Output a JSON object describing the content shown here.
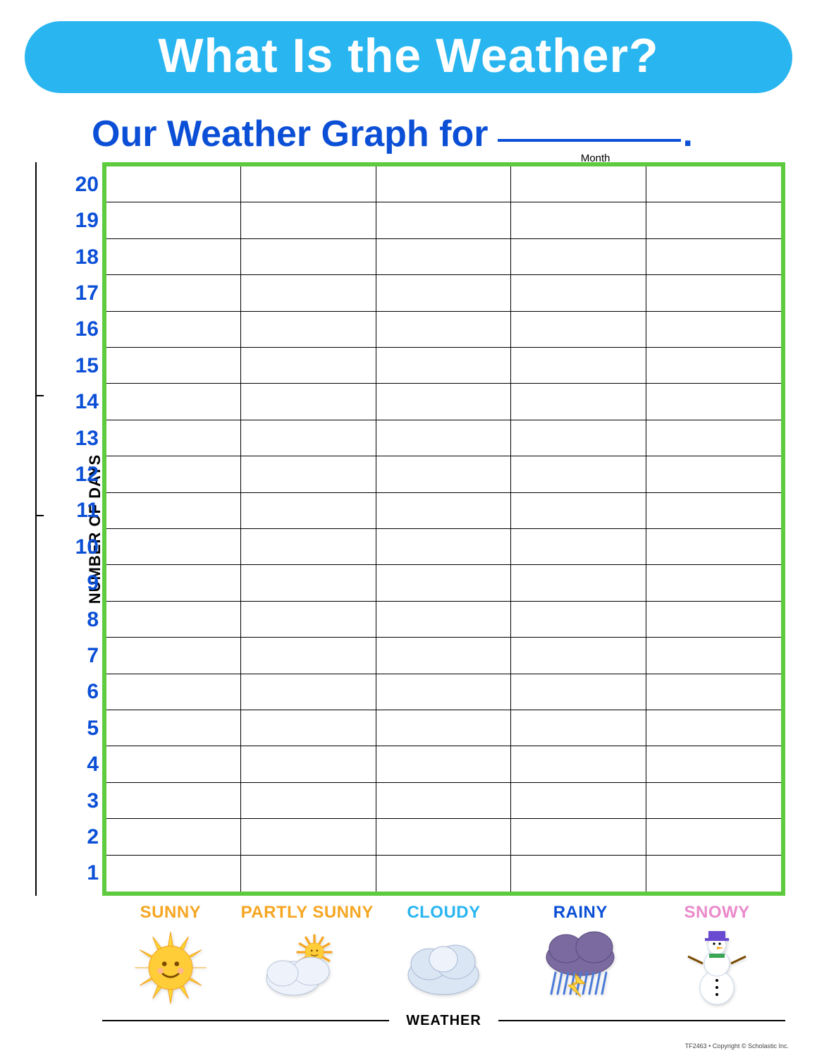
{
  "banner": {
    "title": "What Is the Weather?",
    "background_color": "#29b6f0",
    "text_color": "#ffffff",
    "fontsize": 68,
    "border_radius": 100
  },
  "subtitle": {
    "text": "Our Weather Graph for",
    "blank_label": "Month",
    "text_color": "#0b4fd6",
    "fontsize": 52,
    "underline_width": 260,
    "underline_color": "#0b4fd6"
  },
  "chart": {
    "type": "bar_grid_blank",
    "rows": 20,
    "columns": 5,
    "grid_border_color": "#5ecb3f",
    "grid_border_width": 6,
    "cell_border_color": "#000000",
    "cell_border_width": 1,
    "background_color": "#ffffff",
    "ylabel": "NUMBER OF DAYS",
    "ylabel_fontsize": 22,
    "ylim": [
      1,
      20
    ],
    "ytick_step": 1,
    "yticks": [
      20,
      19,
      18,
      17,
      16,
      15,
      14,
      13,
      12,
      11,
      10,
      9,
      8,
      7,
      6,
      5,
      4,
      3,
      2,
      1
    ],
    "ytick_color": "#0b4fd6",
    "ytick_fontsize": 30,
    "xlabel": "WEATHER",
    "xlabel_fontsize": 20,
    "categories": [
      {
        "label": "SUNNY",
        "color": "#f5a623",
        "icon": "sun"
      },
      {
        "label": "PARTLY SUNNY",
        "color": "#f5a623",
        "icon": "partly"
      },
      {
        "label": "CLOUDY",
        "color": "#29b6f0",
        "icon": "cloud"
      },
      {
        "label": "RAINY",
        "color": "#0b4fd6",
        "icon": "rain"
      },
      {
        "label": "SNOWY",
        "color": "#e98acb",
        "icon": "snow"
      }
    ]
  },
  "footer": {
    "copyright": "TF2463 • Copyright © Scholastic Inc."
  }
}
